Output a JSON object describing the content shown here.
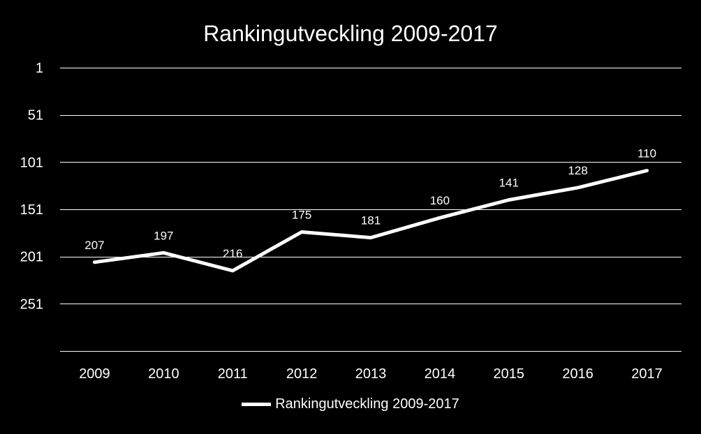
{
  "chart_data": {
    "type": "line",
    "title": "Rankingutveckling 2009-2017",
    "xlabel": "",
    "ylabel": "",
    "categories": [
      "2009",
      "2010",
      "2011",
      "2012",
      "2013",
      "2014",
      "2015",
      "2016",
      "2017"
    ],
    "series": [
      {
        "name": "Rankingutveckling 2009-2017",
        "values": [
          207,
          197,
          216,
          175,
          181,
          160,
          141,
          128,
          110
        ],
        "data_labels": [
          "207",
          "197",
          "216",
          "175",
          "181",
          "160",
          "141",
          "128",
          "110"
        ]
      }
    ],
    "yticks": [
      1,
      51,
      101,
      151,
      201,
      251
    ],
    "ylim": [
      1,
      301
    ],
    "y_inverted": true,
    "grid": true,
    "legend_position": "bottom",
    "colors": {
      "background": "#000000",
      "line": "#ffffff",
      "grid": "#ffffff",
      "text": "#ffffff"
    }
  }
}
